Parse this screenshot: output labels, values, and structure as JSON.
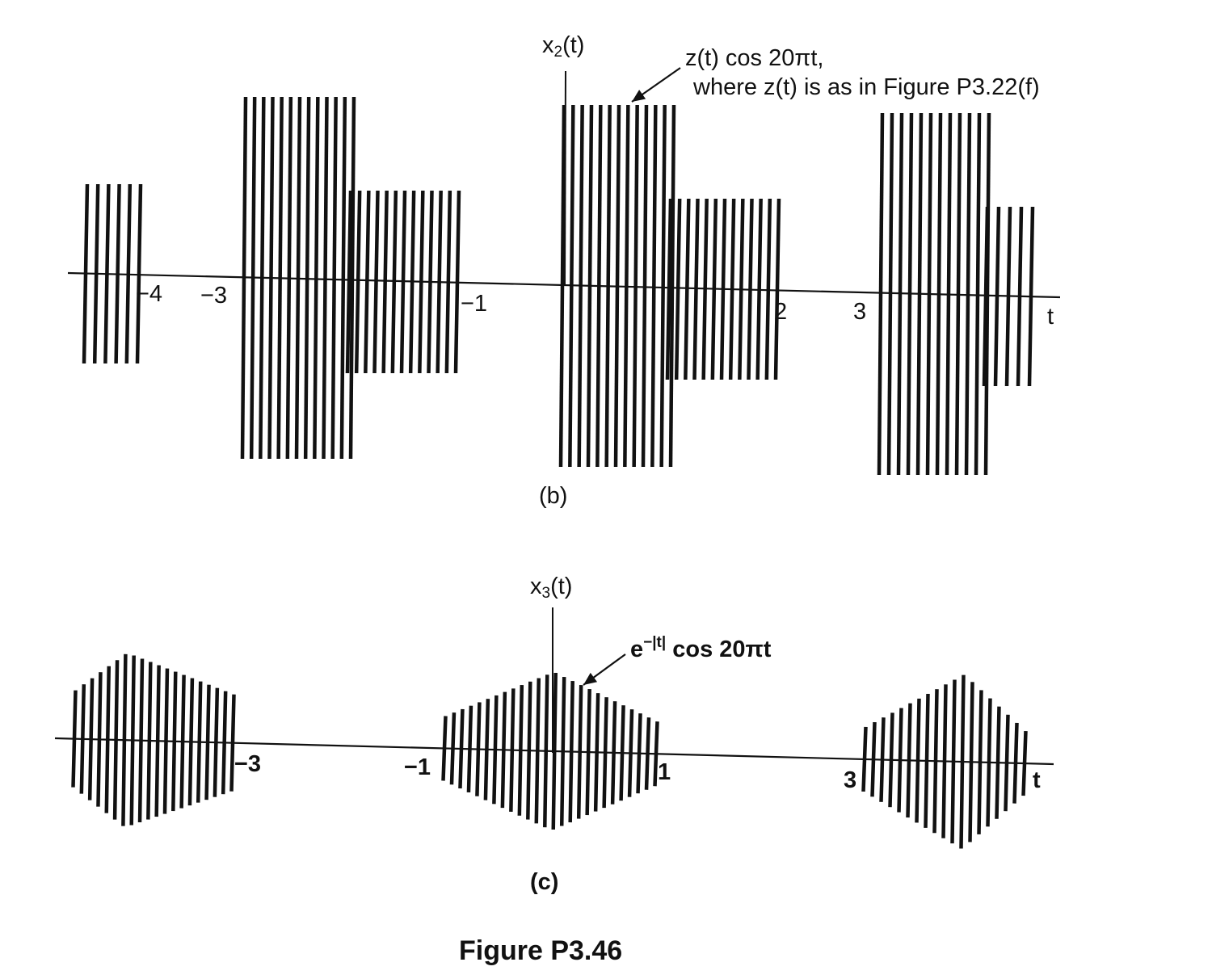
{
  "figure_caption": "Figure P3.46",
  "panel_b": {
    "caption": "(b)",
    "y_label": {
      "base": "x",
      "sub": "2",
      "tail": "(t)"
    },
    "x_label": "t",
    "annotation_line1": "z(t) cos 20πt,",
    "annotation_line2": "where z(t) is as in Figure P3.22(f)",
    "ticks": [
      "−4",
      "−3",
      "−1",
      "2",
      "3"
    ]
  },
  "panel_c": {
    "caption": "(c)",
    "y_label": {
      "base": "x",
      "sub": "3",
      "tail": "(t)"
    },
    "x_label": "t",
    "annotation": {
      "base": "e",
      "sup": "−|t|",
      "tail": " cos 20πt"
    },
    "ticks": [
      "−3",
      "−1",
      "1",
      "3"
    ]
  },
  "colors": {
    "ink": "#111111"
  }
}
